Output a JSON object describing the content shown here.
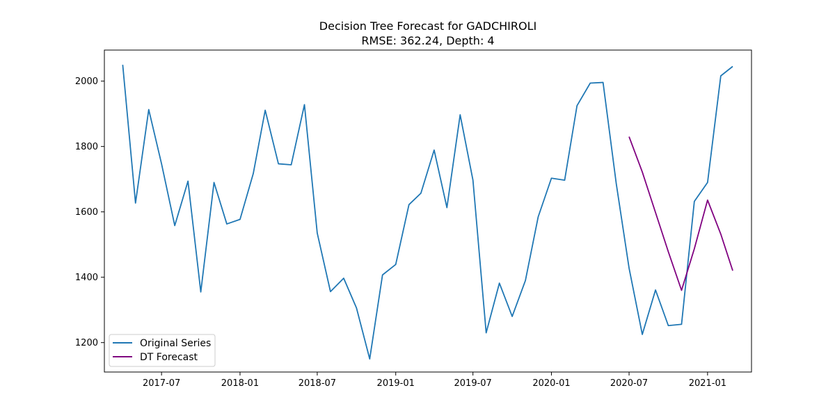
{
  "chart_data": {
    "type": "line",
    "title": "Decision Tree Forecast for GADCHIROLI",
    "subtitle": "RMSE: 362.24, Depth: 4",
    "xlabel": "",
    "ylabel": "",
    "xlim": [
      "2017-02-17",
      "2021-04-14"
    ],
    "ylim": [
      1110,
      2095
    ],
    "grid": false,
    "legend_position": "lower-left",
    "x_ticks": [
      "2017-07",
      "2018-01",
      "2018-07",
      "2019-01",
      "2019-07",
      "2020-01",
      "2020-07",
      "2021-01"
    ],
    "y_ticks": [
      1200,
      1400,
      1600,
      1800,
      2000
    ],
    "series": [
      {
        "name": "Original Series",
        "color": "#1f77b4",
        "x": [
          "2017-04",
          "2017-05",
          "2017-06",
          "2017-07",
          "2017-08",
          "2017-09",
          "2017-10",
          "2017-11",
          "2017-12",
          "2018-01",
          "2018-02",
          "2018-03",
          "2018-04",
          "2018-05",
          "2018-06",
          "2018-07",
          "2018-08",
          "2018-09",
          "2018-10",
          "2018-11",
          "2018-12",
          "2019-01",
          "2019-02",
          "2019-03",
          "2019-04",
          "2019-05",
          "2019-06",
          "2019-07",
          "2019-08",
          "2019-09",
          "2019-10",
          "2019-11",
          "2019-12",
          "2020-01",
          "2020-02",
          "2020-03",
          "2020-04",
          "2020-05",
          "2020-06",
          "2020-07",
          "2020-08",
          "2020-09",
          "2020-10",
          "2020-11",
          "2020-12",
          "2021-01",
          "2021-02",
          "2021-03"
        ],
        "values": [
          2050,
          1627,
          1913,
          1747,
          1558,
          1694,
          1355,
          1690,
          1563,
          1577,
          1717,
          1911,
          1747,
          1744,
          1928,
          1535,
          1356,
          1397,
          1306,
          1150,
          1407,
          1439,
          1622,
          1657,
          1789,
          1613,
          1897,
          1697,
          1230,
          1382,
          1280,
          1390,
          1585,
          1703,
          1697,
          1925,
          1994,
          1996,
          1686,
          1428,
          1225,
          1361,
          1252,
          1256,
          1632,
          1690,
          2016,
          2045
        ]
      },
      {
        "name": "DT Forecast",
        "color": "#800080",
        "x": [
          "2020-07",
          "2020-08",
          "2020-09",
          "2020-10",
          "2020-11",
          "2020-12",
          "2021-01",
          "2021-02",
          "2021-03"
        ],
        "values": [
          1830,
          1722,
          1598,
          1478,
          1360,
          1487,
          1636,
          1532,
          1420
        ]
      }
    ]
  }
}
